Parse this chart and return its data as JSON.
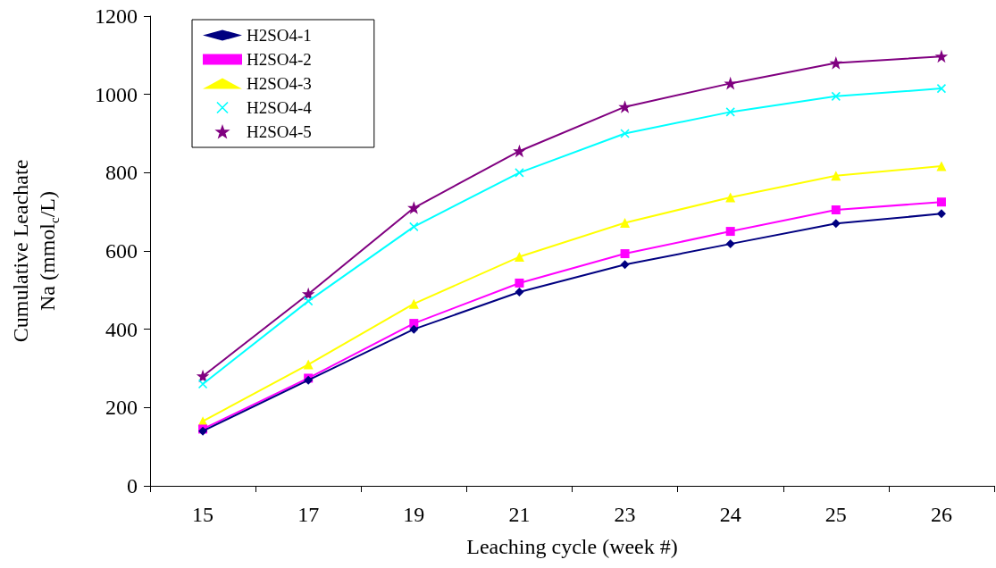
{
  "chart_data": {
    "type": "line",
    "xlabel": "Leaching cycle (week #)",
    "ylabel": "Cumulative Leachate\nNa (mmol$_{c}$/L)",
    "categories": [
      "15",
      "17",
      "19",
      "21",
      "23",
      "24",
      "25",
      "26"
    ],
    "ylim": [
      0,
      1200
    ],
    "yticks": [
      0,
      200,
      400,
      600,
      800,
      1000,
      1200
    ],
    "grid": false,
    "legend": "top left",
    "line_style": "solid",
    "series": [
      {
        "name": "H2SO4-1",
        "color": "#000080",
        "marker": "diamond",
        "values": [
          140,
          270,
          400,
          495,
          565,
          618,
          670,
          695
        ]
      },
      {
        "name": "H2SO4-2",
        "color": "#ff00ff",
        "marker": "square",
        "values": [
          145,
          275,
          415,
          518,
          593,
          650,
          705,
          725
        ]
      },
      {
        "name": "H2SO4-3",
        "color": "#ffff00",
        "marker": "triangle",
        "values": [
          165,
          310,
          465,
          585,
          672,
          737,
          792,
          817
        ]
      },
      {
        "name": "H2SO4-4",
        "color": "#00ffff",
        "marker": "cross",
        "values": [
          260,
          472,
          662,
          800,
          900,
          955,
          995,
          1015
        ]
      },
      {
        "name": "H2SO4-5",
        "color": "#800080",
        "marker": "star",
        "values": [
          280,
          490,
          710,
          855,
          968,
          1028,
          1080,
          1097
        ]
      }
    ]
  }
}
